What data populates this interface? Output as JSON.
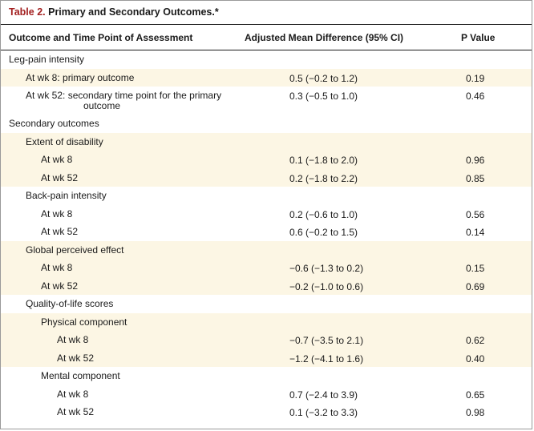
{
  "title": {
    "number": "Table 2.",
    "text": "Primary and Secondary Outcomes.*"
  },
  "headers": {
    "outcome": "Outcome and Time Point of Assessment",
    "difference": "Adjusted Mean Difference (95% CI)",
    "pvalue": "P Value"
  },
  "rows": [
    {
      "label": "Leg-pain intensity",
      "diff": "",
      "p": ""
    },
    {
      "label": "At wk 8: primary outcome",
      "diff": "0.5 (−0.2 to 1.2)",
      "p": "0.19"
    },
    {
      "label": "At wk 52: secondary time point for the primary",
      "label2": "outcome",
      "diff": "0.3 (−0.5 to 1.0)",
      "p": "0.46"
    },
    {
      "label": "Secondary outcomes",
      "diff": "",
      "p": ""
    },
    {
      "label": "Extent of disability",
      "diff": "",
      "p": ""
    },
    {
      "label": "At wk 8",
      "diff": "0.1 (−1.8 to 2.0)",
      "p": "0.96"
    },
    {
      "label": "At wk 52",
      "diff": "0.2 (−1.8 to 2.2)",
      "p": "0.85"
    },
    {
      "label": "Back-pain intensity",
      "diff": "",
      "p": ""
    },
    {
      "label": "At wk 8",
      "diff": "0.2 (−0.6 to 1.0)",
      "p": "0.56"
    },
    {
      "label": "At wk 52",
      "diff": "0.6 (−0.2 to 1.5)",
      "p": "0.14"
    },
    {
      "label": "Global perceived effect",
      "diff": "",
      "p": ""
    },
    {
      "label": "At wk 8",
      "diff": "−0.6 (−1.3 to 0.2)",
      "p": "0.15"
    },
    {
      "label": "At wk 52",
      "diff": "−0.2 (−1.0 to 0.6)",
      "p": "0.69"
    },
    {
      "label": "Quality-of-life scores",
      "diff": "",
      "p": ""
    },
    {
      "label": "Physical component",
      "diff": "",
      "p": ""
    },
    {
      "label": "At wk 8",
      "diff": "−0.7 (−3.5 to 2.1)",
      "p": "0.62"
    },
    {
      "label": "At wk 52",
      "diff": "−1.2 (−4.1 to 1.6)",
      "p": "0.40"
    },
    {
      "label": "Mental component",
      "diff": "",
      "p": ""
    },
    {
      "label": "At wk 8",
      "diff": "0.7 (−2.4 to 3.9)",
      "p": "0.65"
    },
    {
      "label": "At wk 52",
      "diff": "0.1 (−3.2 to 3.3)",
      "p": "0.98"
    }
  ],
  "colors": {
    "title_accent": "#a32020",
    "shaded_row": "#fcf6e4"
  }
}
